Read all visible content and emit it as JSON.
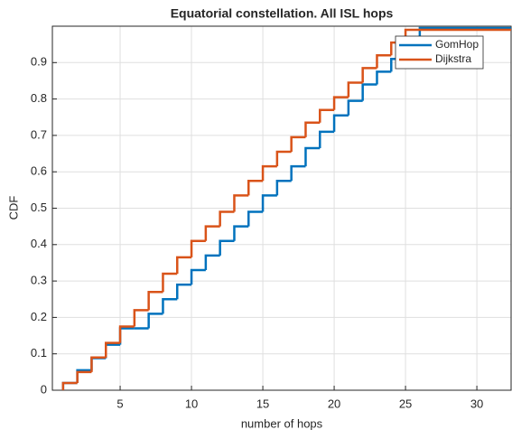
{
  "chart_data": {
    "type": "line",
    "step": "post",
    "title": "Equatorial constellation. All ISL hops",
    "xlabel": "number of hops",
    "ylabel": "CDF",
    "xlim": [
      0.25,
      32.4
    ],
    "ylim": [
      0,
      1
    ],
    "xticks": [
      5,
      10,
      15,
      20,
      25,
      30
    ],
    "yticks": [
      0,
      0.1,
      0.2,
      0.3,
      0.4,
      0.5,
      0.6,
      0.7,
      0.8,
      0.9
    ],
    "grid": true,
    "legend": "upper right",
    "series": [
      {
        "name": "GomHop",
        "color": "#0072bd",
        "x": [
          1,
          2,
          3,
          4,
          5,
          6,
          7,
          8,
          9,
          10,
          11,
          12,
          13,
          14,
          15,
          16,
          17,
          18,
          19,
          20,
          21,
          22,
          23,
          24,
          25,
          26
        ],
        "values": [
          0.02,
          0.055,
          0.088,
          0.125,
          0.17,
          0.17,
          0.21,
          0.25,
          0.29,
          0.33,
          0.37,
          0.41,
          0.45,
          0.49,
          0.535,
          0.575,
          0.615,
          0.665,
          0.71,
          0.755,
          0.795,
          0.84,
          0.875,
          0.91,
          0.94,
          0.995
        ]
      },
      {
        "name": "Dijkstra",
        "color": "#d95319",
        "x": [
          1,
          2,
          3,
          4,
          5,
          6,
          7,
          8,
          9,
          10,
          11,
          12,
          13,
          14,
          15,
          16,
          17,
          18,
          19,
          20,
          21,
          22,
          23,
          24,
          25
        ],
        "values": [
          0.02,
          0.05,
          0.09,
          0.13,
          0.175,
          0.22,
          0.27,
          0.32,
          0.365,
          0.41,
          0.45,
          0.49,
          0.535,
          0.575,
          0.615,
          0.655,
          0.695,
          0.735,
          0.77,
          0.805,
          0.845,
          0.885,
          0.92,
          0.955,
          0.99
        ]
      }
    ]
  }
}
